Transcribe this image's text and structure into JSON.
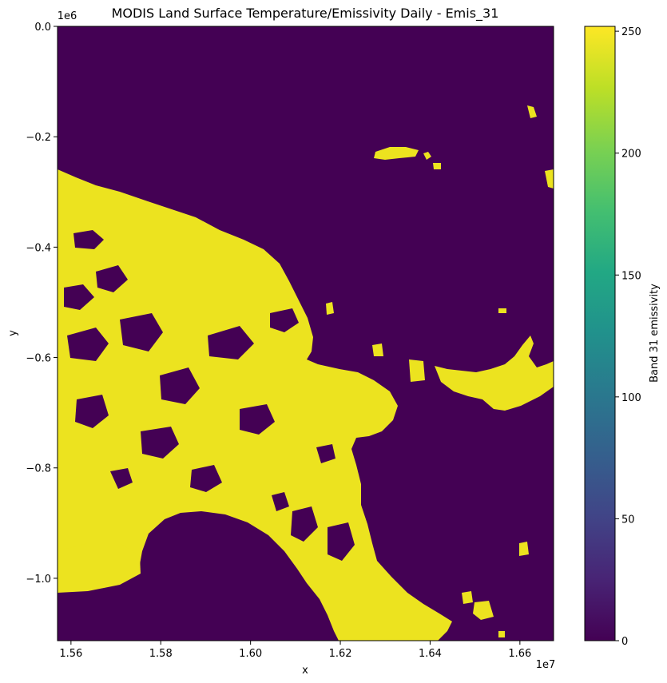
{
  "chart_data": {
    "type": "heatmap",
    "title": "MODIS Land Surface Temperature/Emissivity Daily - Emis_31",
    "xlabel": "x",
    "ylabel": "y",
    "x_offset_label": "1e7",
    "y_offset_label": "1e6",
    "xlim": [
      1.557,
      1.6675
    ],
    "ylim": [
      -1.113,
      0.0
    ],
    "x_ticks": [
      {
        "value": 1.56,
        "label": "1.56"
      },
      {
        "value": 1.58,
        "label": "1.58"
      },
      {
        "value": 1.6,
        "label": "1.60"
      },
      {
        "value": 1.62,
        "label": "1.62"
      },
      {
        "value": 1.64,
        "label": "1.64"
      },
      {
        "value": 1.66,
        "label": "1.66"
      }
    ],
    "y_ticks": [
      {
        "value": 0.0,
        "label": "0.0"
      },
      {
        "value": -0.2,
        "label": "−0.2"
      },
      {
        "value": -0.4,
        "label": "−0.4"
      },
      {
        "value": -0.6,
        "label": "−0.6"
      },
      {
        "value": -0.8,
        "label": "−0.8"
      },
      {
        "value": -1.0,
        "label": "−1.0"
      }
    ],
    "colorbar": {
      "label": "Band 31 emissivity",
      "colormap": "viridis",
      "range": [
        0,
        252
      ],
      "ticks": [
        {
          "value": 0,
          "label": "0"
        },
        {
          "value": 50,
          "label": "50"
        },
        {
          "value": 100,
          "label": "100"
        },
        {
          "value": 150,
          "label": "150"
        },
        {
          "value": 200,
          "label": "200"
        },
        {
          "value": 250,
          "label": "250"
        }
      ]
    },
    "values": {
      "background": 0,
      "land": 250
    },
    "colors": {
      "background": "#440154",
      "land": "#ECE31F"
    }
  }
}
